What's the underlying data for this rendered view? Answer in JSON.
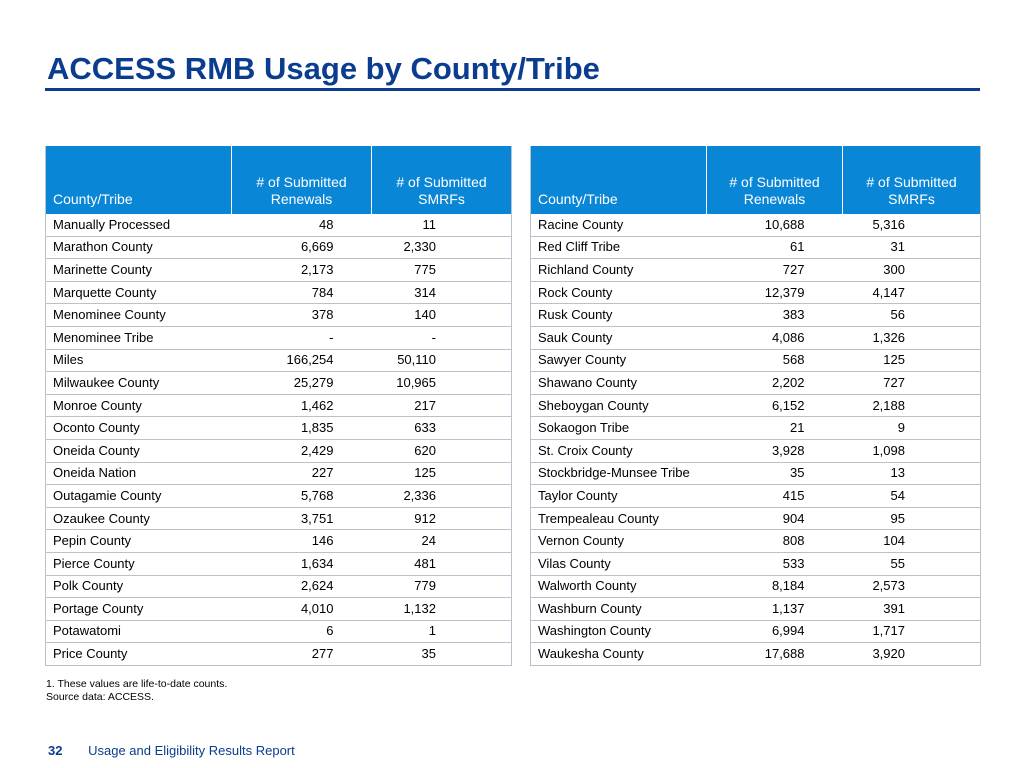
{
  "title": "ACCESS RMB Usage by County/Tribe",
  "columns": {
    "name": "County/Tribe",
    "renewals_l1": "# of Submitted",
    "renewals_l2": "Renewals",
    "smrfs_l1": "# of Submitted",
    "smrfs_l2": "SMRFs"
  },
  "left_rows": [
    {
      "name": "Manually Processed",
      "renewals": "48",
      "smrfs": "11"
    },
    {
      "name": "Marathon County",
      "renewals": "6,669",
      "smrfs": "2,330"
    },
    {
      "name": "Marinette County",
      "renewals": "2,173",
      "smrfs": "775"
    },
    {
      "name": "Marquette  County",
      "renewals": "784",
      "smrfs": "314"
    },
    {
      "name": "Menominee County",
      "renewals": "378",
      "smrfs": "140"
    },
    {
      "name": "Menominee Tribe",
      "renewals": "-",
      "smrfs": "-"
    },
    {
      "name": "Miles",
      "renewals": "166,254",
      "smrfs": "50,110"
    },
    {
      "name": "Milwaukee County",
      "renewals": "25,279",
      "smrfs": "10,965"
    },
    {
      "name": "Monroe County",
      "renewals": "1,462",
      "smrfs": "217"
    },
    {
      "name": "Oconto County",
      "renewals": "1,835",
      "smrfs": "633"
    },
    {
      "name": "Oneida County",
      "renewals": "2,429",
      "smrfs": "620"
    },
    {
      "name": "Oneida Nation",
      "renewals": "227",
      "smrfs": "125"
    },
    {
      "name": "Outagamie County",
      "renewals": "5,768",
      "smrfs": "2,336"
    },
    {
      "name": "Ozaukee County",
      "renewals": "3,751",
      "smrfs": "912"
    },
    {
      "name": "Pepin County",
      "renewals": "146",
      "smrfs": "24"
    },
    {
      "name": "Pierce County",
      "renewals": "1,634",
      "smrfs": "481"
    },
    {
      "name": "Polk County",
      "renewals": "2,624",
      "smrfs": "779"
    },
    {
      "name": "Portage County",
      "renewals": "4,010",
      "smrfs": "1,132"
    },
    {
      "name": "Potawatomi",
      "renewals": "6",
      "smrfs": "1"
    },
    {
      "name": "Price County",
      "renewals": "277",
      "smrfs": "35"
    }
  ],
  "right_rows": [
    {
      "name": "Racine County",
      "renewals": "10,688",
      "smrfs": "5,316"
    },
    {
      "name": "Red Cliff Tribe",
      "renewals": "61",
      "smrfs": "31"
    },
    {
      "name": "Richland County",
      "renewals": "727",
      "smrfs": "300"
    },
    {
      "name": "Rock County",
      "renewals": "12,379",
      "smrfs": "4,147"
    },
    {
      "name": "Rusk County",
      "renewals": "383",
      "smrfs": "56"
    },
    {
      "name": "Sauk County",
      "renewals": "4,086",
      "smrfs": "1,326"
    },
    {
      "name": "Sawyer County",
      "renewals": "568",
      "smrfs": "125"
    },
    {
      "name": "Shawano County",
      "renewals": "2,202",
      "smrfs": "727"
    },
    {
      "name": "Sheboygan County",
      "renewals": "6,152",
      "smrfs": "2,188"
    },
    {
      "name": "Sokaogon Tribe",
      "renewals": "21",
      "smrfs": "9"
    },
    {
      "name": "St. Croix County",
      "renewals": "3,928",
      "smrfs": "1,098"
    },
    {
      "name": "Stockbridge-Munsee Tribe",
      "renewals": "35",
      "smrfs": "13"
    },
    {
      "name": "Taylor County",
      "renewals": "415",
      "smrfs": "54"
    },
    {
      "name": "Trempealeau County",
      "renewals": "904",
      "smrfs": "95"
    },
    {
      "name": "Vernon County",
      "renewals": "808",
      "smrfs": "104"
    },
    {
      "name": "Vilas County",
      "renewals": "533",
      "smrfs": "55"
    },
    {
      "name": "Walworth County",
      "renewals": "8,184",
      "smrfs": "2,573"
    },
    {
      "name": "Washburn County",
      "renewals": "1,137",
      "smrfs": "391"
    },
    {
      "name": "Washington County",
      "renewals": "6,994",
      "smrfs": "1,717"
    },
    {
      "name": "Waukesha County",
      "renewals": "17,688",
      "smrfs": "3,920"
    }
  ],
  "notes": {
    "note1": "1. These values are life-to-date counts.",
    "source": "Source data: ACCESS."
  },
  "footer": {
    "page_number": "32",
    "report_title": "Usage and Eligibility Results Report"
  },
  "colors": {
    "title": "#0a3d8f",
    "header_bg": "#0a86d6",
    "row_rule": "#b9c2cc"
  }
}
